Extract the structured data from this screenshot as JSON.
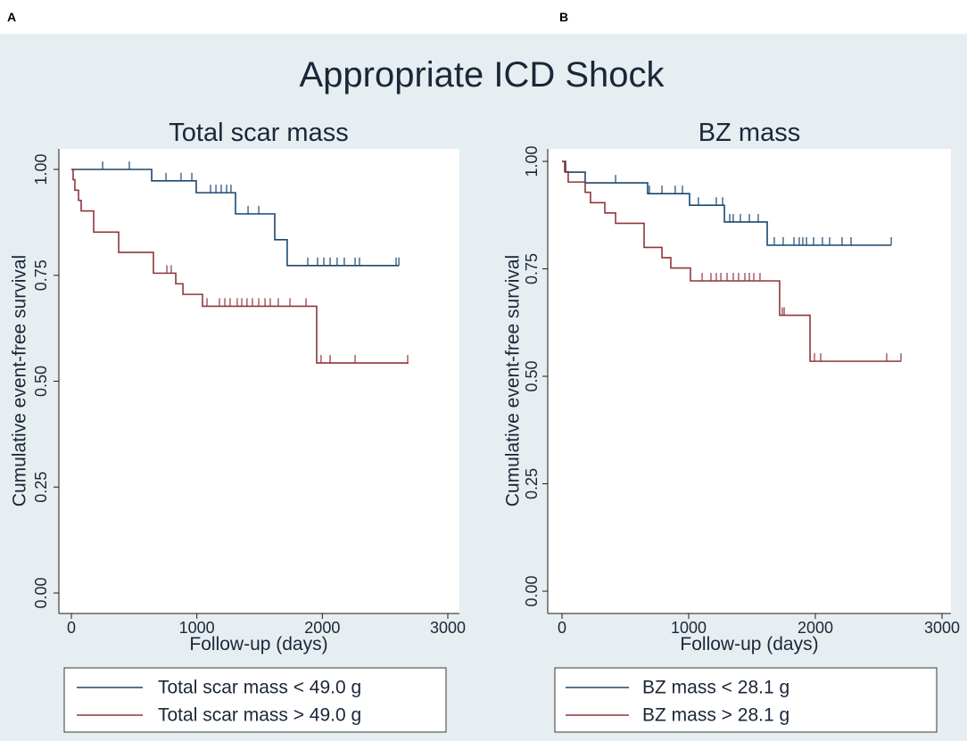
{
  "figure_title": "Appropriate ICD Shock",
  "chart_data": [
    {
      "panel_label": "A",
      "type": "line",
      "title": "Total scar mass",
      "xlabel": "Follow-up (days)",
      "ylabel": "Cumulative event-free survival",
      "xlim": [
        0,
        3000
      ],
      "ylim": [
        0,
        1
      ],
      "xticks": [
        0,
        1000,
        2000,
        3000
      ],
      "xtick_labels": [
        "0",
        "1000",
        "2000",
        "3000"
      ],
      "yticks": [
        0,
        0.25,
        0.5,
        0.75,
        1
      ],
      "ytick_labels": [
        "0.00",
        "0.25",
        "0.50",
        "0.75",
        "1.00"
      ],
      "grid": false,
      "series": [
        {
          "name": "Total scar mass < 49.0 g",
          "color": "#1a476f",
          "steps": [
            [
              0,
              1.0
            ],
            [
              640,
              0.973
            ],
            [
              995,
              0.945
            ],
            [
              1308,
              0.895
            ],
            [
              1621,
              0.834
            ],
            [
              1720,
              0.773
            ]
          ],
          "end": 2610,
          "censored": [
            249,
            462,
            754,
            874,
            960,
            1109,
            1152,
            1194,
            1237,
            1272,
            1408,
            1493,
            1884,
            1962,
            2012,
            2062,
            2118,
            2175,
            2261,
            2296,
            2588,
            2610
          ]
        },
        {
          "name": "Total scar mass > 49.0 g",
          "color": "#90353b",
          "steps": [
            [
              0,
              1.0
            ],
            [
              14,
              0.976
            ],
            [
              28,
              0.951
            ],
            [
              57,
              0.927
            ],
            [
              78,
              0.902
            ],
            [
              178,
              0.852
            ],
            [
              377,
              0.804
            ],
            [
              654,
              0.755
            ],
            [
              832,
              0.73
            ],
            [
              889,
              0.705
            ],
            [
              1045,
              0.677
            ],
            [
              1955,
              0.543
            ]
          ],
          "end": 2687,
          "censored": [
            761,
            796,
            1081,
            1180,
            1223,
            1265,
            1322,
            1358,
            1400,
            1443,
            1493,
            1543,
            1585,
            1649,
            1742,
            1870,
            1990,
            2062,
            2261,
            2680
          ]
        }
      ]
    },
    {
      "panel_label": "B",
      "type": "line",
      "title": "BZ mass",
      "xlabel": "Follow-up (days)",
      "ylabel": "Cumulative event-free survival",
      "xlim": [
        0,
        3000
      ],
      "ylim": [
        0,
        1
      ],
      "xticks": [
        0,
        1000,
        2000,
        3000
      ],
      "xtick_labels": [
        "0",
        "1000",
        "2000",
        "3000"
      ],
      "yticks": [
        0,
        0.25,
        0.5,
        0.75,
        1
      ],
      "ytick_labels": [
        "0.00",
        "0.25",
        "0.50",
        "0.75",
        "1.00"
      ],
      "grid": false,
      "series": [
        {
          "name": "BZ mass < 28.1 g",
          "color": "#1a476f",
          "steps": [
            [
              0,
              1.0
            ],
            [
              28,
              0.975
            ],
            [
              183,
              0.95
            ],
            [
              676,
              0.925
            ],
            [
              1007,
              0.898
            ],
            [
              1282,
              0.859
            ],
            [
              1620,
              0.805
            ]
          ],
          "end": 2599,
          "censored": [
            423,
            690,
            789,
            894,
            951,
            1077,
            1218,
            1268,
            1324,
            1352,
            1408,
            1479,
            1549,
            1676,
            1746,
            1831,
            1873,
            1901,
            1930,
            1986,
            2056,
            2113,
            2211,
            2282,
            2599
          ]
        },
        {
          "name": "BZ mass > 28.1 g",
          "color": "#90353b",
          "steps": [
            [
              0,
              1.0
            ],
            [
              21,
              0.976
            ],
            [
              49,
              0.952
            ],
            [
              183,
              0.928
            ],
            [
              225,
              0.904
            ],
            [
              338,
              0.88
            ],
            [
              423,
              0.856
            ],
            [
              648,
              0.8
            ],
            [
              789,
              0.776
            ],
            [
              859,
              0.752
            ],
            [
              1014,
              0.722
            ],
            [
              1718,
              0.642
            ],
            [
              1958,
              0.535
            ]
          ],
          "end": 2676,
          "censored": [
            1106,
            1176,
            1218,
            1254,
            1303,
            1352,
            1394,
            1444,
            1479,
            1514,
            1563,
            1739,
            1754,
            1993,
            2042,
            2563,
            2676
          ]
        }
      ]
    }
  ]
}
